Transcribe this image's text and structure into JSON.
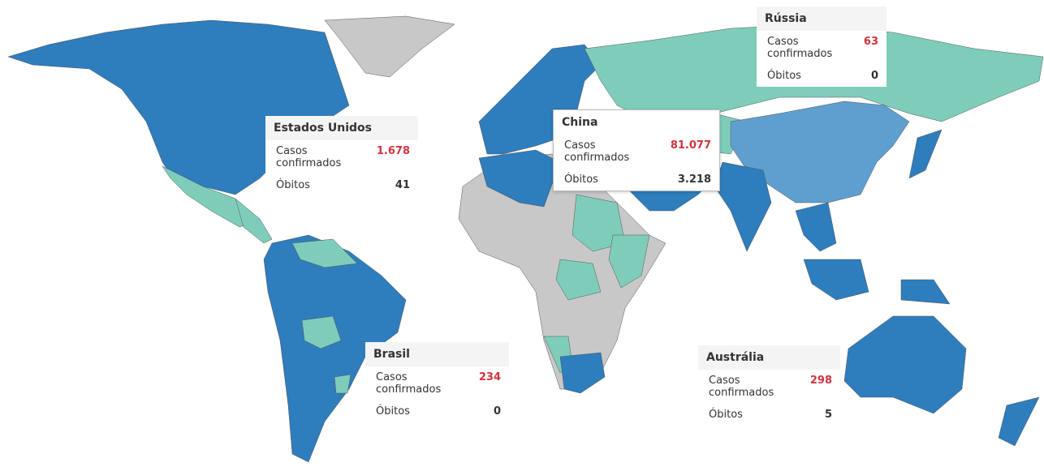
{
  "tooltips": [
    {
      "country": "Rússia",
      "rows": [
        {
          "label": "Casos confirmados",
          "value": "63"
        },
        {
          "label": "Óbitos",
          "value": "0"
        }
      ]
    },
    {
      "country": "Estados Unidos",
      "rows": [
        {
          "label": "Casos confirmados",
          "value": "1.678"
        },
        {
          "label": "Óbitos",
          "value": "41"
        }
      ]
    },
    {
      "country": "China",
      "rows": [
        {
          "label": "Casos confirmados",
          "value": "81.077"
        },
        {
          "label": "Óbitos",
          "value": "3.218"
        }
      ]
    },
    {
      "country": "Brasil",
      "rows": [
        {
          "label": "Casos confirmados",
          "value": "234"
        },
        {
          "label": "Óbitos",
          "value": "0"
        }
      ]
    },
    {
      "country": "Austrália",
      "rows": [
        {
          "label": "Casos confirmados",
          "value": "298"
        },
        {
          "label": "Óbitos",
          "value": "5"
        }
      ]
    }
  ]
}
